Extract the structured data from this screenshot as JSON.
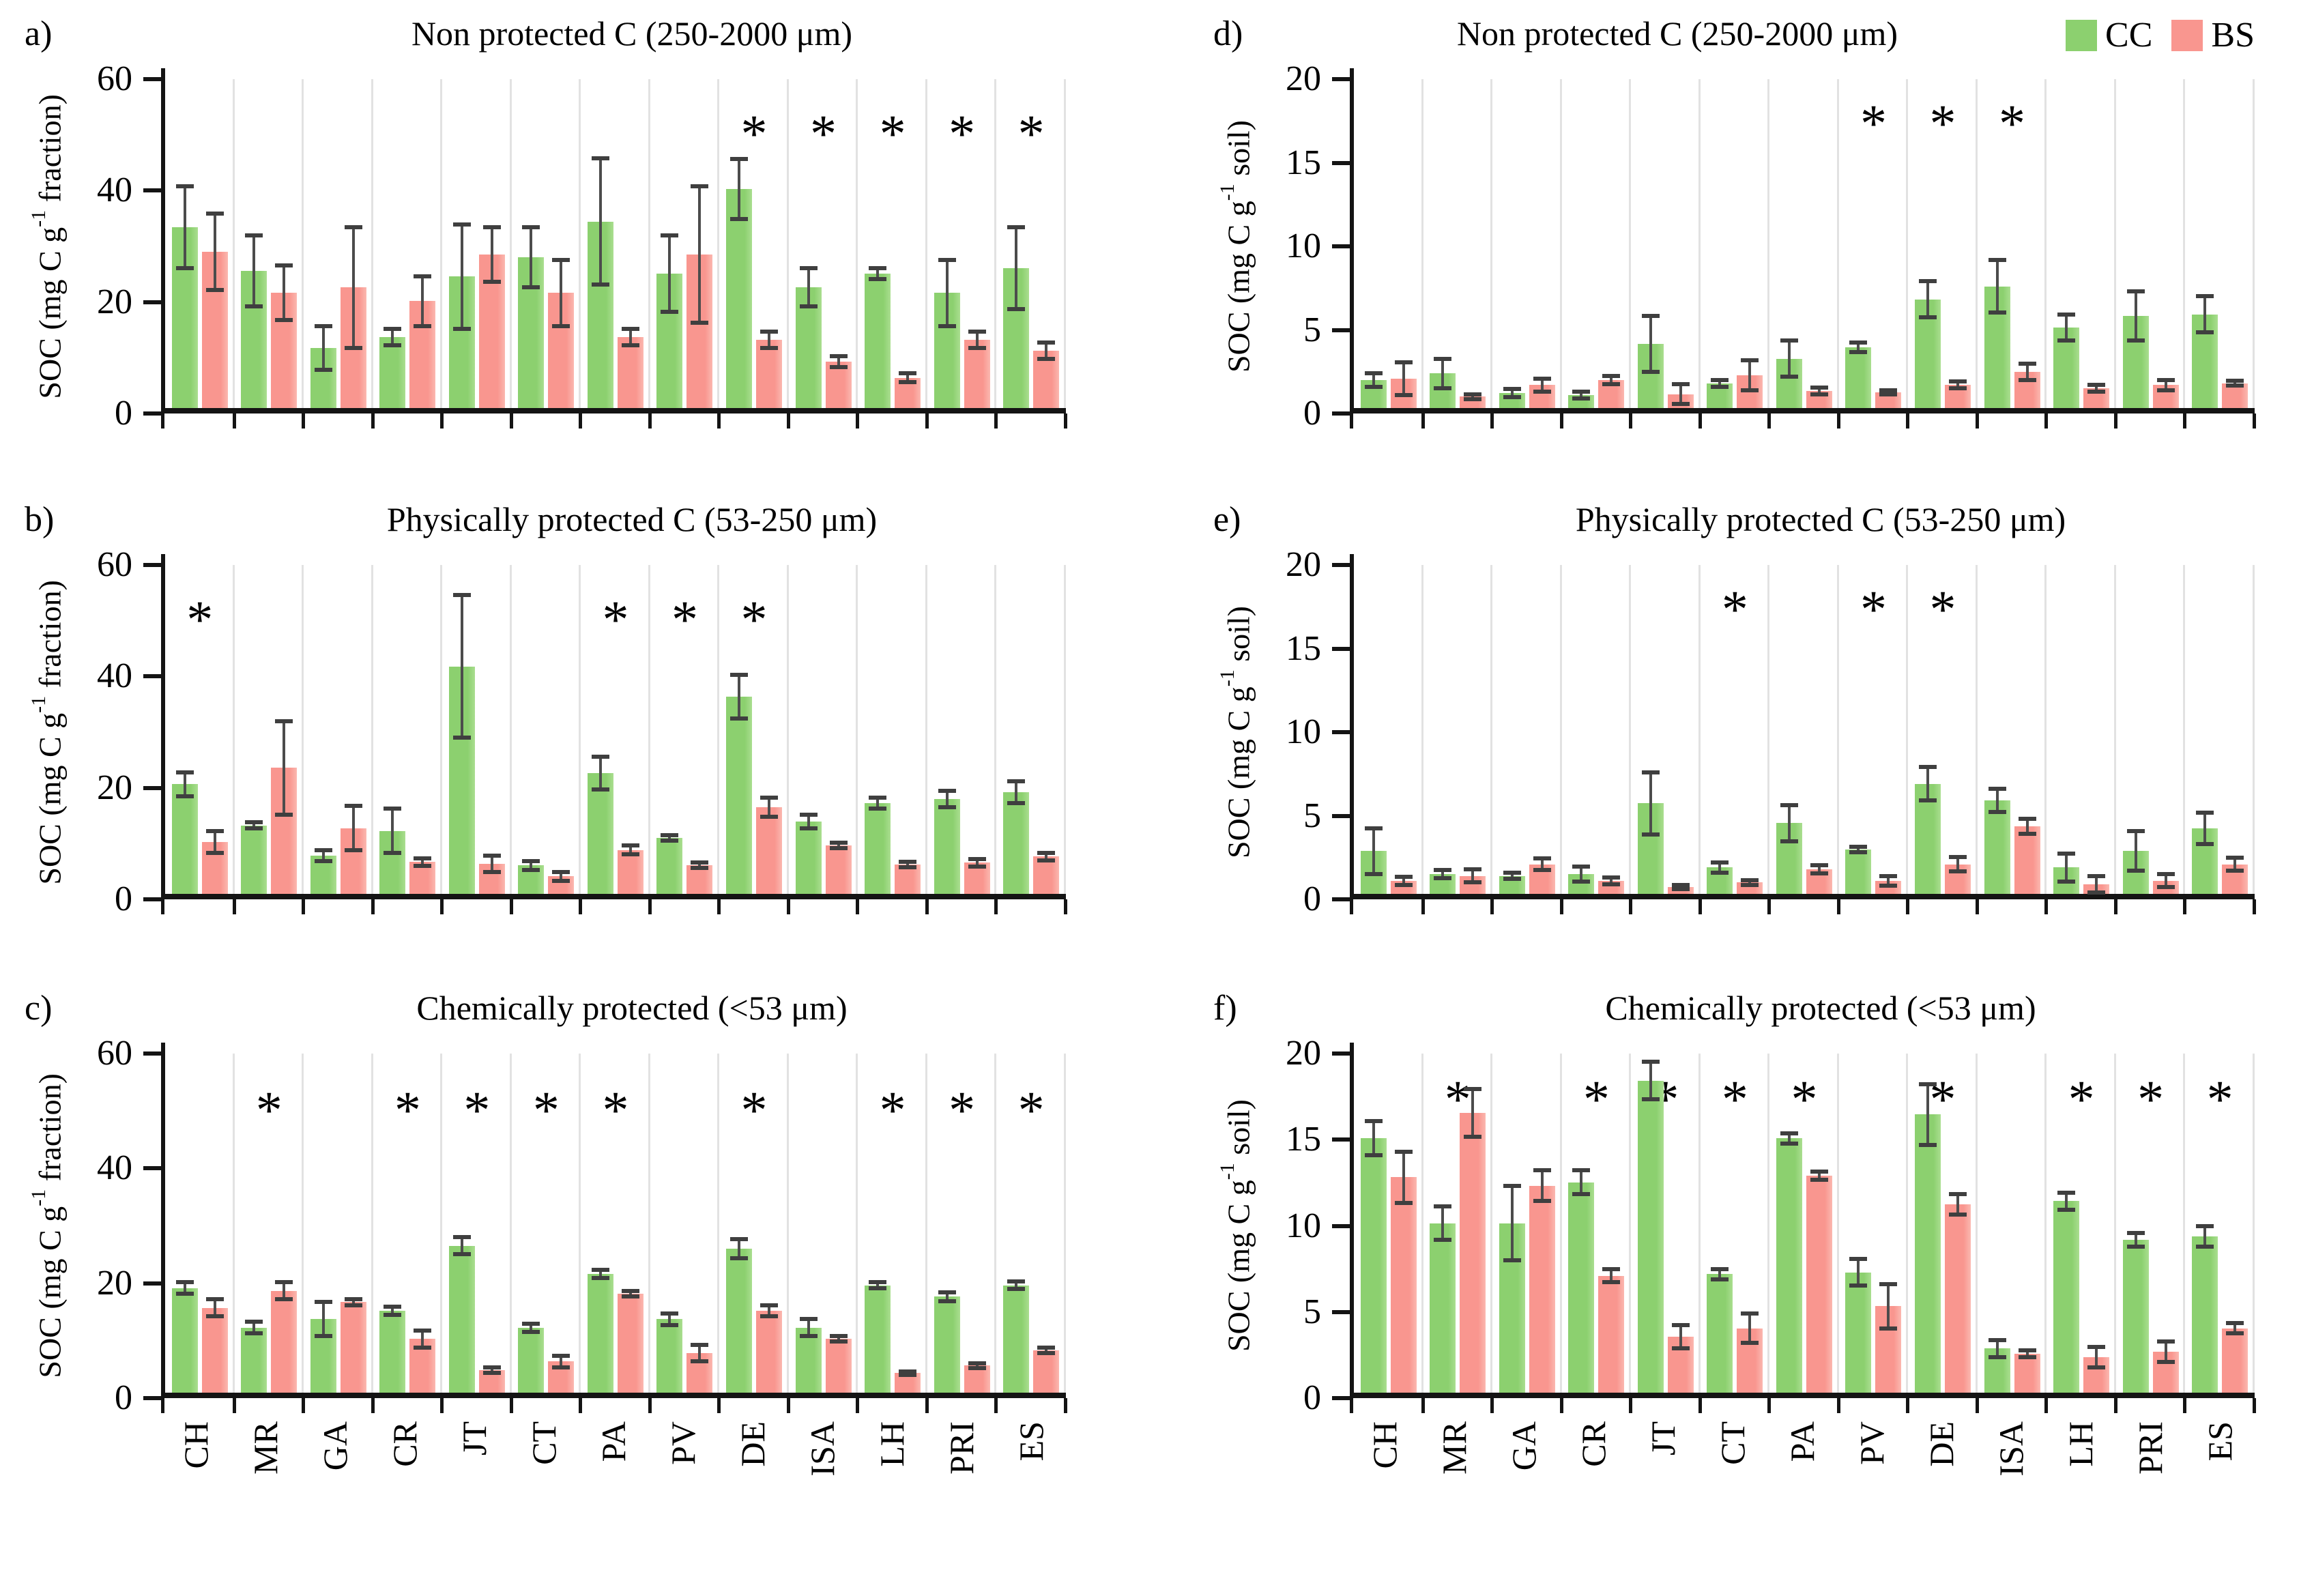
{
  "colors": {
    "cc": "#8CD06F",
    "bs": "#F9968F",
    "error_bar": "#4C4C4C",
    "axis": "#141414",
    "gridline": "#E2E2E2"
  },
  "legend": {
    "items": [
      {
        "label": "CC",
        "color": "#8CD06F"
      },
      {
        "label": "BS",
        "color": "#F9968F"
      }
    ]
  },
  "chart_data": {
    "type": "bar",
    "asterisk": "*",
    "categories": [
      "CH",
      "MR",
      "GA",
      "CR",
      "JT",
      "CT",
      "PA",
      "PV",
      "DE",
      "ISA",
      "LH",
      "PRI",
      "ES"
    ],
    "legend_position": "top-right of panel d",
    "grid": "vertical light category separators",
    "panels": [
      {
        "letter": "a)",
        "title": "Non protected C (250-2000 μm)",
        "ylabel": {
          "pre": "SOC (mg C g",
          "sup": "-1",
          "post": " fraction)"
        },
        "ymax": 60,
        "yticks": [
          0,
          20,
          40,
          60
        ],
        "asterisk_y": 50,
        "asterisks": [
          "DE",
          "ISA",
          "LH",
          "PRI",
          "ES"
        ],
        "series": [
          {
            "name": "CC",
            "values": [
              33,
              25,
              11,
              13,
              24,
              27.5,
              34,
              24.5,
              40,
              22,
              24.5,
              21,
              25.5
            ],
            "errors": [
              7.5,
              6.5,
              4,
              1.5,
              9.5,
              5.5,
              11.5,
              7,
              5.5,
              3.5,
              1,
              6,
              7.5
            ]
          },
          {
            "name": "BS",
            "values": [
              28.5,
              21,
              22,
              19.5,
              28,
              21,
              13,
              28,
              12.5,
              8.5,
              5.5,
              12.5,
              10.5
            ],
            "errors": [
              7,
              5,
              11,
              4.5,
              5,
              6,
              1.5,
              12.5,
              1.5,
              1,
              0.8,
              1.5,
              1.5
            ]
          }
        ]
      },
      {
        "letter": "b)",
        "title": "Physically protected C (53-250 μm)",
        "ylabel": {
          "pre": "SOC (mg C g",
          "sup": "-1",
          "post": " fraction)"
        },
        "ymax": 60,
        "yticks": [
          0,
          20,
          40,
          60
        ],
        "asterisk_y": 50,
        "asterisks": [
          "CH",
          "PA",
          "PV",
          "DE"
        ],
        "series": [
          {
            "name": "CC",
            "values": [
              20,
              12.5,
              7,
              11.5,
              41.5,
              5.2,
              22,
              10.2,
              36,
              13.2,
              16.5,
              17.3,
              18.5
            ],
            "errors": [
              2.2,
              0.6,
              1,
              4,
              13,
              0.8,
              3,
              0.5,
              4,
              1.3,
              1,
              1.5,
              2
            ]
          },
          {
            "name": "BS",
            "values": [
              9.5,
              23,
              12,
              5.8,
              5.5,
              3.2,
              8,
              5.2,
              15.8,
              8.8,
              5.3,
              5.7,
              6.8
            ],
            "errors": [
              2,
              8.5,
              4,
              0.7,
              1.5,
              0.8,
              0.8,
              0.5,
              1.7,
              0.5,
              0.5,
              0.7,
              0.7
            ]
          }
        ]
      },
      {
        "letter": "c)",
        "title": "Chemically protected (<53 μm)",
        "ylabel": {
          "pre": "SOC (mg C g",
          "sup": "-1",
          "post": " fraction)"
        },
        "ymax": 60,
        "yticks": [
          0,
          20,
          40,
          60
        ],
        "asterisk_y": 50,
        "asterisks": [
          "MR",
          "CR",
          "JT",
          "CT",
          "PA",
          "DE",
          "LH",
          "PRI",
          "ES"
        ],
        "series": [
          {
            "name": "CC",
            "values": [
              18.5,
              11.5,
              13,
              14.5,
              26,
              11.5,
              21,
              13,
              25.5,
              11.5,
              19,
              17,
              19
            ],
            "errors": [
              1,
              1,
              3,
              0.7,
              1.5,
              0.7,
              0.7,
              1,
              1.7,
              1.5,
              0.5,
              0.8,
              0.7
            ]
          },
          {
            "name": "BS",
            "values": [
              15,
              18,
              16,
              9.5,
              4,
              5.5,
              17.5,
              7,
              14.5,
              9.5,
              3.5,
              4.8,
              7.5
            ],
            "errors": [
              1.5,
              1.5,
              0.5,
              1.5,
              0.5,
              1,
              0.5,
              1.5,
              1,
              0.5,
              0.3,
              0.4,
              0.5
            ]
          }
        ]
      },
      {
        "letter": "d)",
        "title": "Non protected C (250-2000 μm)",
        "ylabel": {
          "pre": "SOC (mg C g",
          "sup": "-1",
          "post": " soil)"
        },
        "ymax": 20,
        "yticks": [
          0,
          5,
          10,
          15,
          20
        ],
        "asterisk_y": 17.3,
        "asterisks": [
          "PV",
          "DE",
          "ISA"
        ],
        "has_legend": true,
        "series": [
          {
            "name": "CC",
            "values": [
              1.7,
              2.1,
              0.9,
              0.8,
              3.9,
              1.5,
              3.0,
              3.7,
              6.6,
              7.4,
              4.9,
              5.6,
              5.7
            ],
            "errors": [
              0.4,
              0.9,
              0.25,
              0.2,
              1.7,
              0.2,
              1.1,
              0.3,
              1.1,
              1.6,
              0.8,
              1.5,
              1.1
            ]
          },
          {
            "name": "BS",
            "values": [
              1.8,
              0.7,
              1.4,
              1.7,
              0.85,
              2.0,
              1.05,
              0.95,
              1.4,
              2.2,
              1.2,
              1.4,
              1.5
            ],
            "errors": [
              1.0,
              0.15,
              0.4,
              0.25,
              0.6,
              0.9,
              0.2,
              0.12,
              0.2,
              0.5,
              0.2,
              0.3,
              0.15
            ]
          }
        ]
      },
      {
        "letter": "e)",
        "title": "Physically protected C (53-250 μm)",
        "ylabel": {
          "pre": "SOC (mg C g",
          "sup": "-1",
          "post": " soil)"
        },
        "ymax": 20,
        "yticks": [
          0,
          5,
          10,
          15,
          20
        ],
        "asterisk_y": 17.3,
        "asterisks": [
          "CT",
          "PV",
          "DE"
        ],
        "series": [
          {
            "name": "CC",
            "values": [
              2.6,
              1.2,
              1.1,
              1.2,
              5.5,
              1.6,
              4.3,
              2.7,
              6.7,
              5.7,
              1.6,
              2.6,
              4.0
            ],
            "errors": [
              1.4,
              0.25,
              0.2,
              0.45,
              1.9,
              0.3,
              1.1,
              0.15,
              1.0,
              0.7,
              0.85,
              1.2,
              0.95
            ]
          },
          {
            "name": "BS",
            "values": [
              0.8,
              1.1,
              1.8,
              0.8,
              0.4,
              0.7,
              1.5,
              0.8,
              1.8,
              4.1,
              0.6,
              0.8,
              1.8
            ],
            "errors": [
              0.25,
              0.4,
              0.35,
              0.2,
              0.12,
              0.15,
              0.25,
              0.3,
              0.45,
              0.45,
              0.5,
              0.4,
              0.4
            ]
          }
        ]
      },
      {
        "letter": "f)",
        "title": "Chemically protected (<53 μm)",
        "ylabel": {
          "pre": "SOC (mg C g",
          "sup": "-1",
          "post": " soil)"
        },
        "ymax": 20,
        "yticks": [
          0,
          5,
          10,
          15,
          20
        ],
        "asterisk_y": 17.3,
        "asterisks": [
          "MR",
          "CR",
          "JT",
          "CT",
          "PA",
          "DE",
          "LH",
          "PRI",
          "ES"
        ],
        "series": [
          {
            "name": "CC",
            "values": [
              15.0,
              10.0,
              10.0,
              12.4,
              18.4,
              7.0,
              15.0,
              7.1,
              16.4,
              2.6,
              11.3,
              9.0,
              9.2
            ],
            "errors": [
              1.0,
              1.0,
              2.2,
              0.7,
              1.1,
              0.3,
              0.3,
              0.8,
              1.8,
              0.5,
              0.5,
              0.4,
              0.6
            ]
          },
          {
            "name": "BS",
            "values": [
              12.7,
              16.5,
              12.2,
              6.9,
              3.3,
              3.8,
              12.8,
              5.1,
              11.1,
              2.3,
              2.1,
              2.4,
              3.8
            ],
            "errors": [
              1.5,
              1.4,
              0.9,
              0.4,
              0.7,
              0.85,
              0.25,
              1.3,
              0.6,
              0.2,
              0.6,
              0.6,
              0.3
            ]
          }
        ]
      }
    ]
  }
}
